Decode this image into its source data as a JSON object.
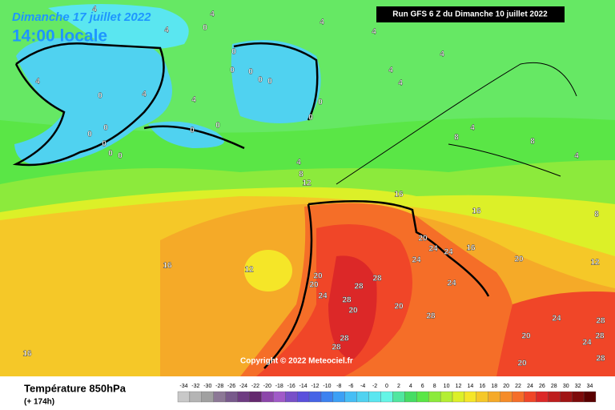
{
  "header": {
    "date": "Dimanche 17 juillet 2022",
    "time": "14:00 locale",
    "run": "Run GFS 6 Z du Dimanche 10 juillet 2022"
  },
  "copyright": "Copyright © 2022 Meteociel.fr",
  "footer": {
    "title": "Température 850hPa",
    "lead": "(+ 174h)"
  },
  "colorbar": {
    "ticks": [
      -34,
      -32,
      -30,
      -28,
      -26,
      -24,
      -22,
      -20,
      -18,
      -16,
      -14,
      -12,
      -10,
      -8,
      -6,
      -4,
      -2,
      0,
      2,
      4,
      6,
      8,
      10,
      12,
      14,
      16,
      18,
      20,
      22,
      24,
      26,
      28,
      30,
      32,
      34
    ],
    "colors": [
      "#c8c8c8",
      "#b4b4b4",
      "#a0a0a0",
      "#8c7896",
      "#785a8c",
      "#6e3c82",
      "#64286e",
      "#8c46aa",
      "#a05ac8",
      "#7850c8",
      "#5a50dc",
      "#4664e6",
      "#3c82f0",
      "#3ca0f5",
      "#46bef5",
      "#50d2f0",
      "#5ae6f0",
      "#64f5e6",
      "#50e6a0",
      "#46dc64",
      "#5ae646",
      "#8cea3c",
      "#b4ee32",
      "#dcf028",
      "#f5e628",
      "#f5c828",
      "#f5aa28",
      "#f58c28",
      "#f56e28",
      "#f04628",
      "#dc2828",
      "#be1e1e",
      "#a01414",
      "#7d0a0a",
      "#5a0000"
    ]
  },
  "contour_labels": [
    4,
    4,
    4,
    4,
    4,
    4,
    4,
    4,
    4,
    4,
    4,
    4,
    4,
    4,
    0,
    0,
    0,
    0,
    0,
    0,
    0,
    0,
    0,
    0,
    0,
    0,
    0,
    0,
    0,
    0,
    8,
    8,
    8,
    8,
    12,
    12,
    12,
    16,
    16,
    16,
    16,
    16,
    20,
    20,
    20,
    20,
    20,
    20,
    20,
    20,
    24,
    24,
    24,
    24,
    24,
    24,
    24,
    28,
    28,
    28,
    28,
    28,
    28,
    28,
    28,
    28
  ]
}
